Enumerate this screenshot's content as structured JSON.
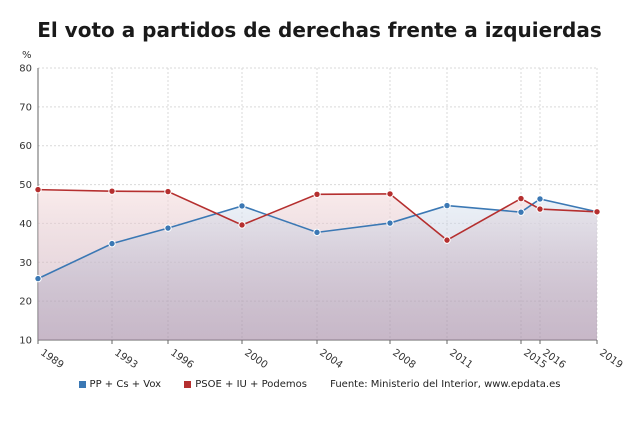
{
  "title": "El voto a partidos de derechas frente a izquierdas",
  "colors": {
    "right": "#3b78b4",
    "left": "#b52f2f",
    "grid": "#d9d9d9"
  },
  "chart_data": {
    "type": "line",
    "ylabel": "%",
    "ylim": [
      10,
      80
    ],
    "yticks": [
      10,
      20,
      30,
      40,
      50,
      60,
      70,
      80
    ],
    "x": [
      "1989",
      "1993",
      "1996",
      "2000",
      "2004",
      "2008",
      "2011",
      "2015",
      "2016",
      "2019"
    ],
    "series": [
      {
        "name": "PP + Cs + Vox",
        "values": [
          25.8,
          34.8,
          38.8,
          44.5,
          37.7,
          40.1,
          44.6,
          42.9,
          46.3,
          43.0
        ]
      },
      {
        "name": "PSOE + IU + Podemos",
        "values": [
          48.7,
          48.3,
          48.2,
          39.6,
          47.5,
          47.6,
          35.7,
          46.4,
          43.7,
          43.0
        ]
      }
    ],
    "grid": true,
    "legend_position": "bottom"
  },
  "legend": {
    "right_label": "PP + Cs + Vox",
    "left_label": "PSOE + IU + Podemos",
    "source": "Fuente: Ministerio del Interior, www.epdata.es"
  }
}
